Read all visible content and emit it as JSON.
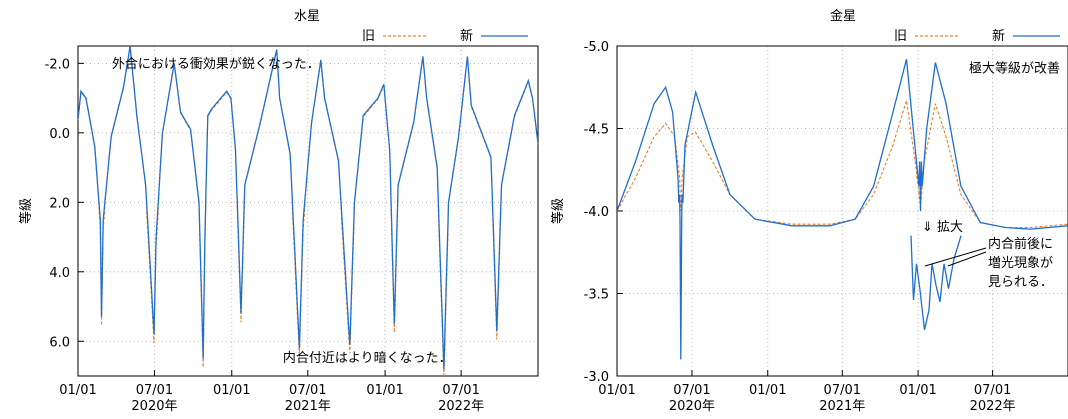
{
  "chart_data": [
    {
      "type": "line",
      "title": "水星",
      "ylabel": "等級",
      "ylim": [
        7.0,
        -2.5
      ],
      "y_ticks": [
        "-2.0",
        "0.0",
        "2.0",
        "4.0",
        "6.0"
      ],
      "x_ticks": [
        {
          "date": "2020-01-01",
          "line1": "01/01",
          "line2": ""
        },
        {
          "date": "2020-07-01",
          "line1": "07/01",
          "line2": "2020年"
        },
        {
          "date": "2021-01-01",
          "line1": "01/01",
          "line2": ""
        },
        {
          "date": "2021-07-01",
          "line1": "07/01",
          "line2": "2021年"
        },
        {
          "date": "2022-01-01",
          "line1": "01/01",
          "line2": ""
        },
        {
          "date": "2022-07-01",
          "line1": "07/01",
          "line2": "2022年"
        }
      ],
      "xlim": [
        "2020-01-01",
        "2022-12-31"
      ],
      "grid": true,
      "legend": {
        "position": "top-right"
      },
      "series": [
        {
          "name": "旧",
          "color": "#e8812a",
          "style": "dashed"
        },
        {
          "name": "新",
          "color": "#1f6fd1",
          "style": "solid"
        }
      ],
      "keypoints": [
        [
          "2020-01-01",
          -0.4
        ],
        [
          "2020-01-08",
          -1.2
        ],
        [
          "2020-01-20",
          -1.0
        ],
        [
          "2020-02-10",
          0.4
        ],
        [
          "2020-02-23",
          2.5
        ],
        [
          "2020-02-26",
          5.3
        ],
        [
          "2020-03-01",
          2.5
        ],
        [
          "2020-03-20",
          0.1
        ],
        [
          "2020-04-18",
          -1.3
        ],
        [
          "2020-05-04",
          -2.5
        ],
        [
          "2020-05-20",
          -0.5
        ],
        [
          "2020-06-10",
          1.5
        ],
        [
          "2020-06-30",
          5.8
        ],
        [
          "2020-07-05",
          3.0
        ],
        [
          "2020-07-20",
          0.0
        ],
        [
          "2020-08-17",
          -2.0
        ],
        [
          "2020-09-01",
          -0.6
        ],
        [
          "2020-09-25",
          -0.1
        ],
        [
          "2020-10-15",
          2.0
        ],
        [
          "2020-10-25",
          6.5
        ],
        [
          "2020-10-29",
          3.0
        ],
        [
          "2020-11-05",
          -0.5
        ],
        [
          "2020-11-15",
          -0.7
        ],
        [
          "2020-12-20",
          -1.2
        ],
        [
          "2020-12-30",
          -1.0
        ],
        [
          "2021-01-10",
          0.5
        ],
        [
          "2021-01-23",
          5.2
        ],
        [
          "2021-02-01",
          1.5
        ],
        [
          "2021-03-10",
          -0.3
        ],
        [
          "2021-04-18",
          -2.4
        ],
        [
          "2021-04-25",
          -1.0
        ],
        [
          "2021-05-20",
          0.6
        ],
        [
          "2021-06-11",
          6.2
        ],
        [
          "2021-06-20",
          2.5
        ],
        [
          "2021-07-10",
          -0.3
        ],
        [
          "2021-08-01",
          -2.1
        ],
        [
          "2021-08-10",
          -1.0
        ],
        [
          "2021-09-12",
          0.8
        ],
        [
          "2021-10-09",
          6.1
        ],
        [
          "2021-10-20",
          2.0
        ],
        [
          "2021-11-10",
          -0.5
        ],
        [
          "2021-12-15",
          -1.0
        ],
        [
          "2021-12-29",
          -1.4
        ],
        [
          "2022-01-12",
          0.5
        ],
        [
          "2022-01-23",
          5.5
        ],
        [
          "2022-02-01",
          1.5
        ],
        [
          "2022-03-10",
          -0.3
        ],
        [
          "2022-04-01",
          -2.2
        ],
        [
          "2022-04-10",
          -1.0
        ],
        [
          "2022-05-05",
          1.0
        ],
        [
          "2022-05-21",
          6.8
        ],
        [
          "2022-06-01",
          2.0
        ],
        [
          "2022-06-25",
          0.1
        ],
        [
          "2022-07-16",
          -2.2
        ],
        [
          "2022-07-25",
          -0.8
        ],
        [
          "2022-09-10",
          0.7
        ],
        [
          "2022-09-24",
          5.7
        ],
        [
          "2022-10-05",
          1.5
        ],
        [
          "2022-11-05",
          -0.5
        ],
        [
          "2022-12-08",
          -1.5
        ],
        [
          "2022-12-18",
          -1.0
        ],
        [
          "2022-12-31",
          0.3
        ]
      ],
      "annotations": [
        {
          "text": "外合における衝効果が鋭くなった．",
          "date": "2020-01-15",
          "value": -2.5
        },
        {
          "text": "内合付近はより暗くなった．",
          "date": "2021-02-25",
          "value": 6.6
        }
      ]
    },
    {
      "type": "line",
      "title": "金星",
      "ylabel": "等級",
      "ylim": [
        -3.0,
        -5.0
      ],
      "y_ticks": [
        "-5.0",
        "-4.5",
        "-4.0",
        "-3.5",
        "-3.0"
      ],
      "x_ticks": [
        {
          "date": "2020-01-01",
          "line1": "01/01",
          "line2": ""
        },
        {
          "date": "2020-07-01",
          "line1": "07/01",
          "line2": "2020年"
        },
        {
          "date": "2021-01-01",
          "line1": "01/01",
          "line2": ""
        },
        {
          "date": "2021-07-01",
          "line1": "07/01",
          "line2": "2021年"
        },
        {
          "date": "2022-01-01",
          "line1": "01/01",
          "line2": ""
        },
        {
          "date": "2022-07-01",
          "line1": "07/01",
          "line2": "2022年"
        }
      ],
      "xlim": [
        "2020-01-01",
        "2022-12-31"
      ],
      "grid": true,
      "legend": {
        "position": "top-right"
      },
      "series": [
        {
          "name": "旧",
          "color": "#e8812a",
          "style": "dashed",
          "points": [
            [
              "2020-01-01",
              -4.0
            ],
            [
              "2020-02-15",
              -4.2
            ],
            [
              "2020-03-31",
              -4.45
            ],
            [
              "2020-04-28",
              -4.53
            ],
            [
              "2020-05-20",
              -4.45
            ],
            [
              "2020-06-01",
              -4.2
            ],
            [
              "2020-06-04",
              -4.0
            ],
            [
              "2020-06-07",
              -4.2
            ],
            [
              "2020-06-20",
              -4.45
            ],
            [
              "2020-07-09",
              -4.48
            ],
            [
              "2020-08-20",
              -4.3
            ],
            [
              "2020-10-01",
              -4.1
            ],
            [
              "2020-12-01",
              -3.95
            ],
            [
              "2021-03-01",
              -3.92
            ],
            [
              "2021-06-01",
              -3.92
            ],
            [
              "2021-08-01",
              -3.95
            ],
            [
              "2021-09-15",
              -4.1
            ],
            [
              "2021-11-01",
              -4.4
            ],
            [
              "2021-12-04",
              -4.67
            ],
            [
              "2021-12-25",
              -4.3
            ],
            [
              "2022-01-07",
              -4.02
            ],
            [
              "2022-01-16",
              -4.3
            ],
            [
              "2022-02-12",
              -4.65
            ],
            [
              "2022-03-10",
              -4.45
            ],
            [
              "2022-04-15",
              -4.1
            ],
            [
              "2022-06-01",
              -3.93
            ],
            [
              "2022-08-01",
              -3.9
            ],
            [
              "2022-10-01",
              -3.9
            ],
            [
              "2022-12-31",
              -3.92
            ]
          ]
        },
        {
          "name": "新",
          "color": "#1f6fd1",
          "style": "solid",
          "points": [
            [
              "2020-01-01",
              -4.0
            ],
            [
              "2020-02-15",
              -4.3
            ],
            [
              "2020-03-31",
              -4.65
            ],
            [
              "2020-04-28",
              -4.75
            ],
            [
              "2020-05-15",
              -4.6
            ],
            [
              "2020-05-28",
              -4.2
            ],
            [
              "2020-05-30",
              -4.05
            ],
            [
              "2020-06-01",
              -4.1
            ],
            [
              "2020-06-02",
              -3.95
            ],
            [
              "2020-06-04",
              -3.1
            ],
            [
              "2020-06-06",
              -3.95
            ],
            [
              "2020-06-07",
              -4.1
            ],
            [
              "2020-06-09",
              -4.05
            ],
            [
              "2020-06-14",
              -4.4
            ],
            [
              "2020-07-10",
              -4.72
            ],
            [
              "2020-08-20",
              -4.4
            ],
            [
              "2020-10-01",
              -4.1
            ],
            [
              "2020-12-01",
              -3.95
            ],
            [
              "2021-03-01",
              -3.91
            ],
            [
              "2021-06-01",
              -3.91
            ],
            [
              "2021-08-01",
              -3.95
            ],
            [
              "2021-09-15",
              -4.15
            ],
            [
              "2021-11-01",
              -4.6
            ],
            [
              "2021-12-04",
              -4.92
            ],
            [
              "2021-12-22",
              -4.45
            ],
            [
              "2022-01-03",
              -4.15
            ],
            [
              "2022-01-05",
              -4.3
            ],
            [
              "2022-01-07",
              -4.0
            ],
            [
              "2022-01-09",
              -4.3
            ],
            [
              "2022-01-11",
              -4.15
            ],
            [
              "2022-01-22",
              -4.5
            ],
            [
              "2022-02-12",
              -4.9
            ],
            [
              "2022-03-10",
              -4.65
            ],
            [
              "2022-04-15",
              -4.15
            ],
            [
              "2022-06-01",
              -3.93
            ],
            [
              "2022-08-01",
              -3.9
            ],
            [
              "2022-10-01",
              -3.89
            ],
            [
              "2022-12-31",
              -3.91
            ]
          ]
        }
      ],
      "inset": {
        "label": "⇓ 拡大",
        "points": [
          [
            0.0,
            -3.85
          ],
          [
            0.05,
            -3.46
          ],
          [
            0.11,
            -3.68
          ],
          [
            0.18,
            -3.52
          ],
          [
            0.27,
            -3.28
          ],
          [
            0.36,
            -3.4
          ],
          [
            0.42,
            -3.68
          ],
          [
            0.5,
            -3.55
          ],
          [
            0.58,
            -3.45
          ],
          [
            0.66,
            -3.68
          ],
          [
            0.75,
            -3.53
          ],
          [
            0.86,
            -3.71
          ],
          [
            1.0,
            -3.85
          ]
        ],
        "annotation": [
          "内合前後に",
          "増光現象が",
          "見られる．"
        ]
      },
      "annotations": [
        {
          "text": "極大等級が改善",
          "date": "2022-12-31",
          "value": -4.87
        }
      ]
    }
  ]
}
